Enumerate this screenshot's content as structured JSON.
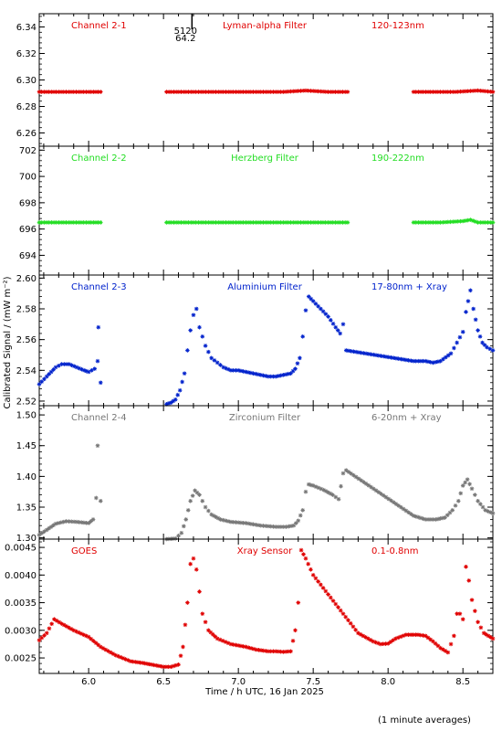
{
  "chart_data": {
    "type": "scatter",
    "xlabel": "Time / h UTC, 16 Jan 2025",
    "ylabel": "Calibrated Signal / (mW m⁻²)",
    "footnote": "(1 minute averages)",
    "xlim": [
      5.67,
      8.7
    ],
    "xticks": [
      "6.0",
      "6.5",
      "7.0",
      "7.5",
      "8.0",
      "8.5"
    ],
    "xtick_values": [
      6.0,
      6.5,
      7.0,
      7.5,
      8.0,
      8.5
    ],
    "grid": false,
    "marker": "*",
    "gaps": [
      [
        6.08,
        6.52
      ],
      [
        7.73,
        8.17
      ]
    ],
    "top_annotation": {
      "x": 6.69,
      "label_top": "5120",
      "label_bottom": "64.2"
    },
    "panels": [
      {
        "channel": "Channel 2-1",
        "filter": "Lyman-alpha Filter",
        "band": "120-123nm",
        "color": "#e00000",
        "ylim": [
          6.25,
          6.35
        ],
        "yticks": [
          "6.26",
          "6.28",
          "6.30",
          "6.32",
          "6.34"
        ],
        "ytick_values": [
          6.26,
          6.28,
          6.3,
          6.32,
          6.34
        ],
        "points": [
          [
            5.67,
            6.291
          ],
          [
            5.8,
            6.291
          ],
          [
            5.9,
            6.291
          ],
          [
            6.0,
            6.291
          ],
          [
            6.08,
            6.291
          ],
          [
            6.52,
            6.291
          ],
          [
            6.7,
            6.291
          ],
          [
            6.9,
            6.291
          ],
          [
            7.1,
            6.291
          ],
          [
            7.3,
            6.291
          ],
          [
            7.45,
            6.292
          ],
          [
            7.6,
            6.291
          ],
          [
            7.73,
            6.291
          ],
          [
            8.17,
            6.291
          ],
          [
            8.3,
            6.291
          ],
          [
            8.45,
            6.291
          ],
          [
            8.6,
            6.292
          ],
          [
            8.7,
            6.291
          ]
        ]
      },
      {
        "channel": "Channel 2-2",
        "filter": "Herzberg Filter",
        "band": "190-222nm",
        "color": "#22dd22",
        "ylim": [
          692.5,
          702.3
        ],
        "yticks": [
          "694",
          "696",
          "698",
          "700",
          "702"
        ],
        "ytick_values": [
          694,
          696,
          698,
          700,
          702
        ],
        "points": [
          [
            5.67,
            696.5
          ],
          [
            5.85,
            696.5
          ],
          [
            6.0,
            696.5
          ],
          [
            6.08,
            696.5
          ],
          [
            6.52,
            696.5
          ],
          [
            6.7,
            696.5
          ],
          [
            6.9,
            696.5
          ],
          [
            7.1,
            696.5
          ],
          [
            7.3,
            696.5
          ],
          [
            7.5,
            696.5
          ],
          [
            7.73,
            696.5
          ],
          [
            8.17,
            696.5
          ],
          [
            8.35,
            696.5
          ],
          [
            8.5,
            696.6
          ],
          [
            8.55,
            696.7
          ],
          [
            8.6,
            696.5
          ],
          [
            8.7,
            696.5
          ]
        ]
      },
      {
        "channel": "Channel 2-3",
        "filter": "Aluminium Filter",
        "band": "17-80nm + Xray",
        "color": "#0022cc",
        "ylim": [
          2.517,
          2.602
        ],
        "yticks": [
          "2.52",
          "2.54",
          "2.56",
          "2.58",
          "2.60"
        ],
        "ytick_values": [
          2.52,
          2.54,
          2.56,
          2.58,
          2.6
        ],
        "points": [
          [
            5.67,
            2.531
          ],
          [
            5.72,
            2.536
          ],
          [
            5.78,
            2.542
          ],
          [
            5.82,
            2.544
          ],
          [
            5.87,
            2.544
          ],
          [
            5.92,
            2.542
          ],
          [
            5.97,
            2.54
          ],
          [
            6.0,
            2.539
          ],
          [
            6.04,
            2.541
          ],
          [
            6.06,
            2.546
          ],
          [
            6.065,
            2.568
          ],
          [
            6.08,
            2.532
          ],
          [
            6.52,
            2.518
          ],
          [
            6.55,
            2.519
          ],
          [
            6.58,
            2.521
          ],
          [
            6.61,
            2.527
          ],
          [
            6.64,
            2.538
          ],
          [
            6.66,
            2.553
          ],
          [
            6.68,
            2.566
          ],
          [
            6.7,
            2.576
          ],
          [
            6.72,
            2.58
          ],
          [
            6.74,
            2.568
          ],
          [
            6.78,
            2.556
          ],
          [
            6.82,
            2.548
          ],
          [
            6.86,
            2.545
          ],
          [
            6.9,
            2.542
          ],
          [
            6.95,
            2.54
          ],
          [
            7.0,
            2.54
          ],
          [
            7.05,
            2.539
          ],
          [
            7.1,
            2.538
          ],
          [
            7.15,
            2.537
          ],
          [
            7.2,
            2.536
          ],
          [
            7.25,
            2.536
          ],
          [
            7.3,
            2.537
          ],
          [
            7.35,
            2.538
          ],
          [
            7.38,
            2.541
          ],
          [
            7.41,
            2.548
          ],
          [
            7.43,
            2.562
          ],
          [
            7.45,
            2.579
          ],
          [
            7.47,
            2.588
          ],
          [
            7.5,
            2.585
          ],
          [
            7.55,
            2.58
          ],
          [
            7.6,
            2.575
          ],
          [
            7.65,
            2.568
          ],
          [
            7.68,
            2.564
          ],
          [
            7.7,
            2.57
          ],
          [
            7.72,
            2.553
          ],
          [
            8.17,
            2.546
          ],
          [
            8.25,
            2.546
          ],
          [
            8.3,
            2.545
          ],
          [
            8.35,
            2.546
          ],
          [
            8.42,
            2.551
          ],
          [
            8.46,
            2.558
          ],
          [
            8.5,
            2.565
          ],
          [
            8.52,
            2.578
          ],
          [
            8.55,
            2.592
          ],
          [
            8.57,
            2.58
          ],
          [
            8.6,
            2.566
          ],
          [
            8.63,
            2.558
          ],
          [
            8.66,
            2.555
          ],
          [
            8.7,
            2.553
          ]
        ]
      },
      {
        "channel": "Channel 2-4",
        "filter": "Zirconium Filter",
        "band": "6-20nm + Xray",
        "color": "#777777",
        "ylim": [
          1.298,
          1.515
        ],
        "yticks": [
          "1.30",
          "1.35",
          "1.40",
          "1.45",
          "1.50"
        ],
        "ytick_values": [
          1.3,
          1.35,
          1.4,
          1.45,
          1.5
        ],
        "points": [
          [
            5.67,
            1.305
          ],
          [
            5.72,
            1.313
          ],
          [
            5.78,
            1.323
          ],
          [
            5.85,
            1.327
          ],
          [
            5.92,
            1.326
          ],
          [
            6.0,
            1.324
          ],
          [
            6.03,
            1.33
          ],
          [
            6.05,
            1.365
          ],
          [
            6.06,
            1.45
          ],
          [
            6.08,
            1.36
          ],
          [
            6.52,
            1.298
          ],
          [
            6.58,
            1.299
          ],
          [
            6.62,
            1.308
          ],
          [
            6.65,
            1.33
          ],
          [
            6.68,
            1.36
          ],
          [
            6.71,
            1.377
          ],
          [
            6.74,
            1.37
          ],
          [
            6.78,
            1.35
          ],
          [
            6.82,
            1.338
          ],
          [
            6.88,
            1.33
          ],
          [
            6.95,
            1.326
          ],
          [
            7.05,
            1.324
          ],
          [
            7.15,
            1.32
          ],
          [
            7.25,
            1.318
          ],
          [
            7.32,
            1.318
          ],
          [
            7.37,
            1.32
          ],
          [
            7.4,
            1.328
          ],
          [
            7.43,
            1.345
          ],
          [
            7.45,
            1.375
          ],
          [
            7.47,
            1.387
          ],
          [
            7.5,
            1.385
          ],
          [
            7.57,
            1.378
          ],
          [
            7.63,
            1.37
          ],
          [
            7.67,
            1.363
          ],
          [
            7.7,
            1.405
          ],
          [
            7.72,
            1.41
          ],
          [
            8.17,
            1.336
          ],
          [
            8.25,
            1.33
          ],
          [
            8.32,
            1.33
          ],
          [
            8.38,
            1.333
          ],
          [
            8.43,
            1.345
          ],
          [
            8.47,
            1.36
          ],
          [
            8.5,
            1.385
          ],
          [
            8.53,
            1.395
          ],
          [
            8.56,
            1.38
          ],
          [
            8.6,
            1.36
          ],
          [
            8.65,
            1.345
          ],
          [
            8.7,
            1.34
          ]
        ]
      },
      {
        "channel": "GOES",
        "filter": "Xray Sensor",
        "band": "0.1-0.8nm",
        "color": "#e00000",
        "ylim": [
          0.00222,
          0.00465
        ],
        "yticks": [
          "0.0025",
          "0.0030",
          "0.0035",
          "0.0040",
          "0.0045"
        ],
        "ytick_values": [
          0.0025,
          0.003,
          0.0035,
          0.004,
          0.0045
        ],
        "points": [
          [
            5.67,
            0.00282
          ],
          [
            5.72,
            0.00295
          ],
          [
            5.77,
            0.0032
          ],
          [
            5.82,
            0.00312
          ],
          [
            5.9,
            0.003
          ],
          [
            6.0,
            0.00288
          ],
          [
            6.08,
            0.0027
          ],
          [
            6.18,
            0.00255
          ],
          [
            6.28,
            0.00244
          ],
          [
            6.36,
            0.00241
          ],
          [
            6.42,
            0.00238
          ],
          [
            6.5,
            0.00234
          ],
          [
            6.55,
            0.00234
          ],
          [
            6.6,
            0.00238
          ],
          [
            6.63,
            0.0027
          ],
          [
            6.66,
            0.0035
          ],
          [
            6.68,
            0.0042
          ],
          [
            6.7,
            0.0043
          ],
          [
            6.72,
            0.0041
          ],
          [
            6.76,
            0.0033
          ],
          [
            6.8,
            0.003
          ],
          [
            6.86,
            0.00285
          ],
          [
            6.95,
            0.00275
          ],
          [
            7.05,
            0.0027
          ],
          [
            7.12,
            0.00265
          ],
          [
            7.2,
            0.00262
          ],
          [
            7.25,
            0.00262
          ],
          [
            7.3,
            0.00261
          ],
          [
            7.35,
            0.00262
          ],
          [
            7.38,
            0.003
          ],
          [
            7.4,
            0.0035
          ],
          [
            7.42,
            0.00445
          ],
          [
            7.45,
            0.0043
          ],
          [
            7.5,
            0.004
          ],
          [
            7.6,
            0.00365
          ],
          [
            7.7,
            0.0033
          ],
          [
            7.8,
            0.00295
          ],
          [
            7.9,
            0.0028
          ],
          [
            7.95,
            0.00275
          ],
          [
            8.0,
            0.00276
          ],
          [
            8.05,
            0.00285
          ],
          [
            8.12,
            0.00292
          ],
          [
            8.2,
            0.00292
          ],
          [
            8.25,
            0.0029
          ],
          [
            8.3,
            0.0028
          ],
          [
            8.35,
            0.00268
          ],
          [
            8.4,
            0.0026
          ],
          [
            8.44,
            0.0029
          ],
          [
            8.46,
            0.0033
          ],
          [
            8.48,
            0.0033
          ],
          [
            8.5,
            0.0032
          ],
          [
            8.52,
            0.00415
          ],
          [
            8.54,
            0.0039
          ],
          [
            8.56,
            0.00355
          ],
          [
            8.6,
            0.00315
          ],
          [
            8.64,
            0.00295
          ],
          [
            8.7,
            0.00285
          ]
        ]
      }
    ]
  }
}
